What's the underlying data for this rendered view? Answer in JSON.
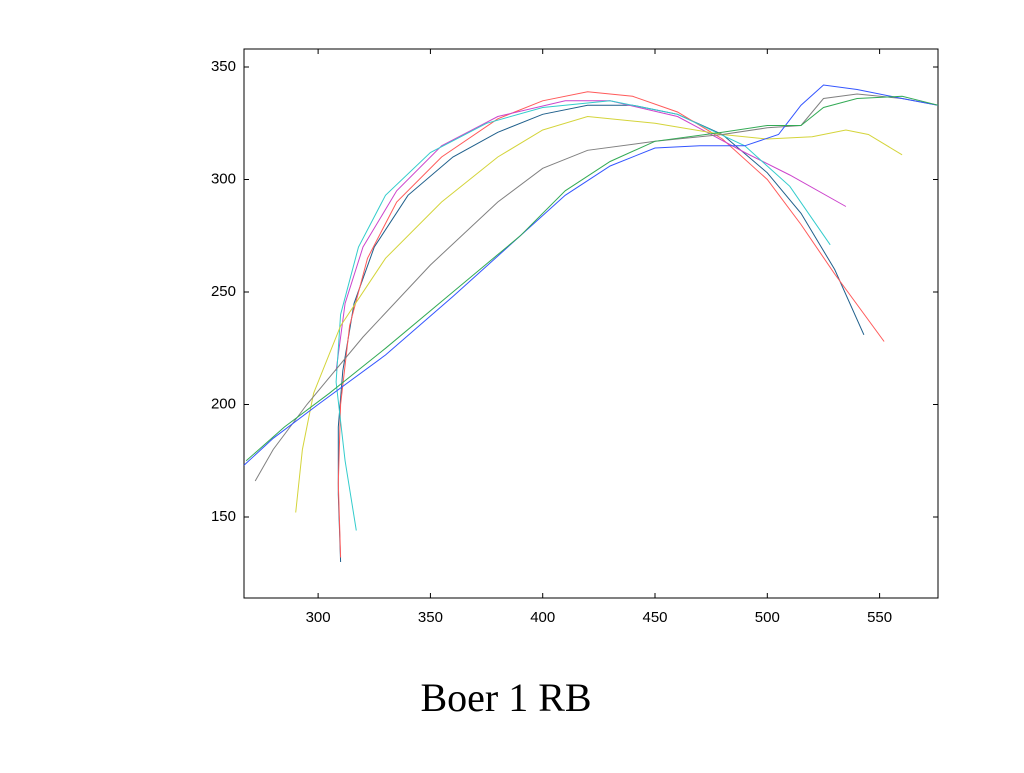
{
  "chart_data": {
    "type": "line",
    "title": "Boer 1 RB",
    "xlim": [
      267,
      576
    ],
    "ylim": [
      114,
      358
    ],
    "xticks": [
      300,
      350,
      400,
      450,
      500,
      550
    ],
    "yticks": [
      150,
      200,
      250,
      300,
      350
    ],
    "series": [
      {
        "color": "#1f5f8b",
        "x": [
          310,
          309,
          309,
          311,
          316,
          325,
          340,
          360,
          380,
          400,
          420,
          440,
          460,
          480,
          500,
          515,
          530,
          543
        ],
        "values": [
          130,
          160,
          190,
          215,
          245,
          270,
          293,
          310,
          321,
          329,
          333,
          333,
          329,
          320,
          303,
          285,
          260,
          231
        ]
      },
      {
        "color": "#ff5a5a",
        "x": [
          310,
          309,
          310,
          314,
          322,
          335,
          355,
          380,
          400,
          420,
          440,
          460,
          480,
          500,
          515,
          530,
          552
        ],
        "values": [
          132,
          165,
          200,
          235,
          265,
          290,
          310,
          327,
          335,
          339,
          337,
          330,
          318,
          300,
          280,
          258,
          228
        ]
      },
      {
        "color": "#cc44cc",
        "x": [
          308,
          312,
          320,
          335,
          355,
          380,
          410,
          430,
          460,
          490,
          510,
          535
        ],
        "values": [
          215,
          245,
          270,
          295,
          315,
          328,
          335,
          335,
          328,
          312,
          302,
          288
        ]
      },
      {
        "color": "#33cccc",
        "x": [
          317,
          312,
          308,
          310,
          318,
          330,
          350,
          375,
          400,
          430,
          460,
          490,
          510,
          528
        ],
        "values": [
          144,
          175,
          210,
          240,
          270,
          293,
          312,
          325,
          332,
          335,
          329,
          315,
          297,
          271
        ]
      },
      {
        "color": "#d4d43a",
        "x": [
          290,
          293,
          298,
          310,
          330,
          355,
          380,
          400,
          420,
          450,
          480,
          500,
          520,
          535,
          545,
          560
        ],
        "values": [
          152,
          180,
          205,
          235,
          265,
          290,
          310,
          322,
          328,
          325,
          320,
          318,
          319,
          322,
          320,
          311
        ]
      },
      {
        "color": "#808080",
        "x": [
          272,
          280,
          295,
          320,
          350,
          380,
          400,
          420,
          450,
          480,
          500,
          515,
          525,
          540,
          560,
          576
        ],
        "values": [
          166,
          180,
          200,
          230,
          262,
          290,
          305,
          313,
          317,
          320,
          323,
          324,
          336,
          338,
          336,
          333
        ]
      },
      {
        "color": "#3355ff",
        "x": [
          267,
          280,
          300,
          330,
          360,
          390,
          410,
          430,
          450,
          470,
          490,
          505,
          515,
          525,
          540,
          560,
          576
        ],
        "values": [
          173,
          185,
          200,
          222,
          248,
          275,
          293,
          306,
          314,
          315,
          315,
          320,
          333,
          342,
          340,
          336,
          333
        ]
      },
      {
        "color": "#33aa55",
        "x": [
          268,
          285,
          305,
          330,
          360,
          390,
          410,
          430,
          450,
          480,
          500,
          515,
          525,
          540,
          560,
          576
        ],
        "values": [
          175,
          190,
          205,
          225,
          250,
          275,
          295,
          308,
          317,
          321,
          324,
          324,
          332,
          336,
          337,
          333
        ]
      }
    ]
  }
}
